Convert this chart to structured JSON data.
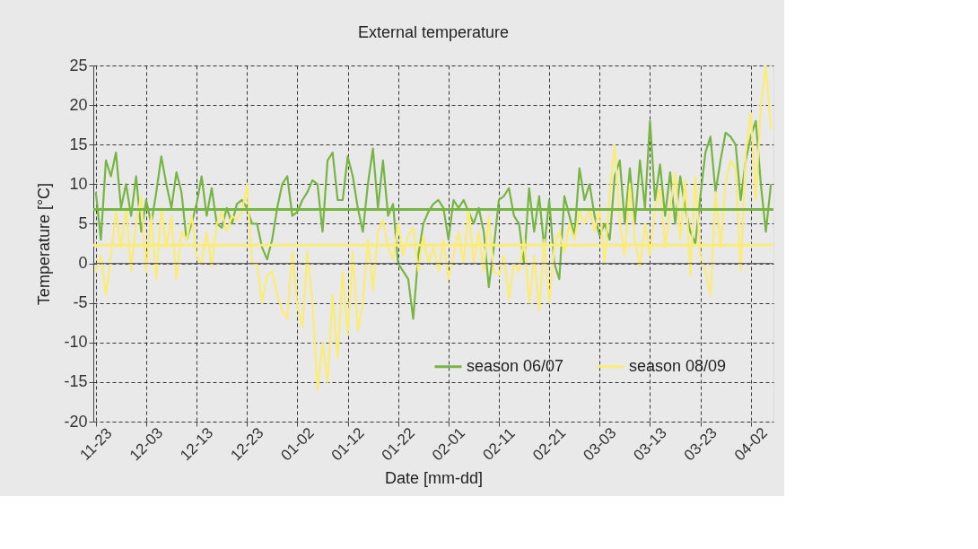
{
  "chart_data": {
    "type": "line",
    "title": "External temperature",
    "xlabel": "Date [mm-dd]",
    "ylabel": "Temperature [°C]",
    "categories": [
      "11-23",
      null,
      null,
      null,
      null,
      null,
      null,
      null,
      null,
      null,
      "12-03",
      null,
      null,
      null,
      null,
      null,
      null,
      null,
      null,
      null,
      "12-13",
      null,
      null,
      null,
      null,
      null,
      null,
      null,
      null,
      null,
      "12-23",
      null,
      null,
      null,
      null,
      null,
      null,
      null,
      null,
      null,
      "01-02",
      null,
      null,
      null,
      null,
      null,
      null,
      null,
      null,
      null,
      "01-12",
      null,
      null,
      null,
      null,
      null,
      null,
      null,
      null,
      null,
      "01-22",
      null,
      null,
      null,
      null,
      null,
      null,
      null,
      null,
      null,
      "02-01",
      null,
      null,
      null,
      null,
      null,
      null,
      null,
      null,
      null,
      "02-11",
      null,
      null,
      null,
      null,
      null,
      null,
      null,
      null,
      null,
      "02-21",
      null,
      null,
      null,
      null,
      null,
      null,
      null,
      null,
      null,
      "03-03",
      null,
      null,
      null,
      null,
      null,
      null,
      null,
      null,
      null,
      "03-13",
      null,
      null,
      null,
      null,
      null,
      null,
      null,
      null,
      null,
      "03-23",
      null,
      null,
      null,
      null,
      null,
      null,
      null,
      null,
      null,
      "04-02",
      null,
      null,
      null,
      null
    ],
    "series": [
      {
        "name": "season 06/07",
        "color": "#77b543",
        "values": [
          9,
          3,
          13,
          11,
          14,
          7,
          10,
          6,
          11,
          4,
          8,
          5,
          9,
          13.5,
          10,
          7,
          11.5,
          9,
          3,
          5,
          7.5,
          11,
          6,
          9.5,
          5,
          4.5,
          7,
          5,
          7.5,
          8,
          7,
          5,
          5,
          2,
          0.5,
          3,
          7,
          10,
          11,
          6,
          6.5,
          8,
          9,
          10.5,
          10,
          4,
          13,
          14,
          8,
          8,
          13.5,
          11,
          7,
          4,
          10,
          14.5,
          7,
          13,
          6,
          7.5,
          0,
          -1,
          -2,
          -7,
          1,
          5,
          6.5,
          7.5,
          8,
          7,
          3,
          8,
          7,
          8,
          6.5,
          5,
          7,
          4,
          -3,
          2,
          8,
          8.5,
          9.5,
          6,
          5,
          0,
          9.5,
          4,
          8.5,
          2,
          8,
          0,
          -2,
          8.5,
          6,
          3.5,
          12,
          8,
          10,
          6,
          3.5,
          5,
          3,
          11,
          13,
          5,
          12,
          5,
          13,
          7,
          18,
          8,
          12.5,
          6,
          11.5,
          5,
          11,
          7,
          4,
          2.5,
          8.5,
          14,
          16,
          9,
          13,
          16.5,
          16,
          15,
          8,
          13,
          16,
          18,
          10,
          4,
          10
        ]
      },
      {
        "name": "season 08/09",
        "color": "#fbec74",
        "values": [
          -1,
          1,
          -4,
          1,
          6.5,
          2,
          7,
          -0.9,
          5,
          8.5,
          -1,
          6,
          -2,
          7,
          2,
          6,
          -2,
          4,
          3,
          6,
          1,
          0,
          4,
          -0.5,
          5,
          6.5,
          4,
          6,
          5.5,
          6.5,
          10,
          0,
          0,
          -5,
          -1.5,
          -1,
          -4,
          -6,
          -7,
          1.5,
          -5.5,
          -8,
          1.5,
          -5,
          -16,
          -10,
          -15,
          -4,
          -12,
          -1,
          -9,
          1.5,
          -8.5,
          -5,
          3,
          -3.5,
          4,
          5.5,
          2,
          0.5,
          5,
          1,
          3.5,
          4.5,
          -1,
          3.5,
          0,
          2,
          -1,
          3,
          -2,
          1,
          4,
          0,
          7,
          0,
          4,
          -1,
          6,
          -1,
          -1.5,
          1,
          -4.5,
          0,
          -1,
          3,
          -5,
          1,
          -6,
          3,
          -5,
          2,
          4,
          1.5,
          5,
          3,
          6.5,
          5,
          7,
          4,
          7,
          0,
          9,
          15,
          5,
          1,
          10,
          3,
          -0.5,
          5,
          1,
          7,
          9.5,
          2,
          7,
          11.5,
          3,
          10.5,
          -1.5,
          11,
          1,
          -1,
          -4,
          9,
          2,
          10,
          13,
          12,
          -1,
          14,
          19,
          8,
          20,
          25,
          17
        ]
      }
    ],
    "ref_lines": [
      {
        "axis": "y",
        "value": 0,
        "color": "#666666"
      },
      {
        "axis": "y",
        "value": 6.8,
        "color": "#77b543"
      },
      {
        "axis": "y",
        "value": 2.3,
        "color": "#fbec74"
      }
    ],
    "ylim": [
      -20,
      25
    ],
    "yticks": [
      -20,
      -15,
      -10,
      -5,
      0,
      5,
      10,
      15,
      20,
      25
    ],
    "grid": true,
    "legend": "bottom right",
    "marker": "none",
    "line_style": "solid"
  }
}
